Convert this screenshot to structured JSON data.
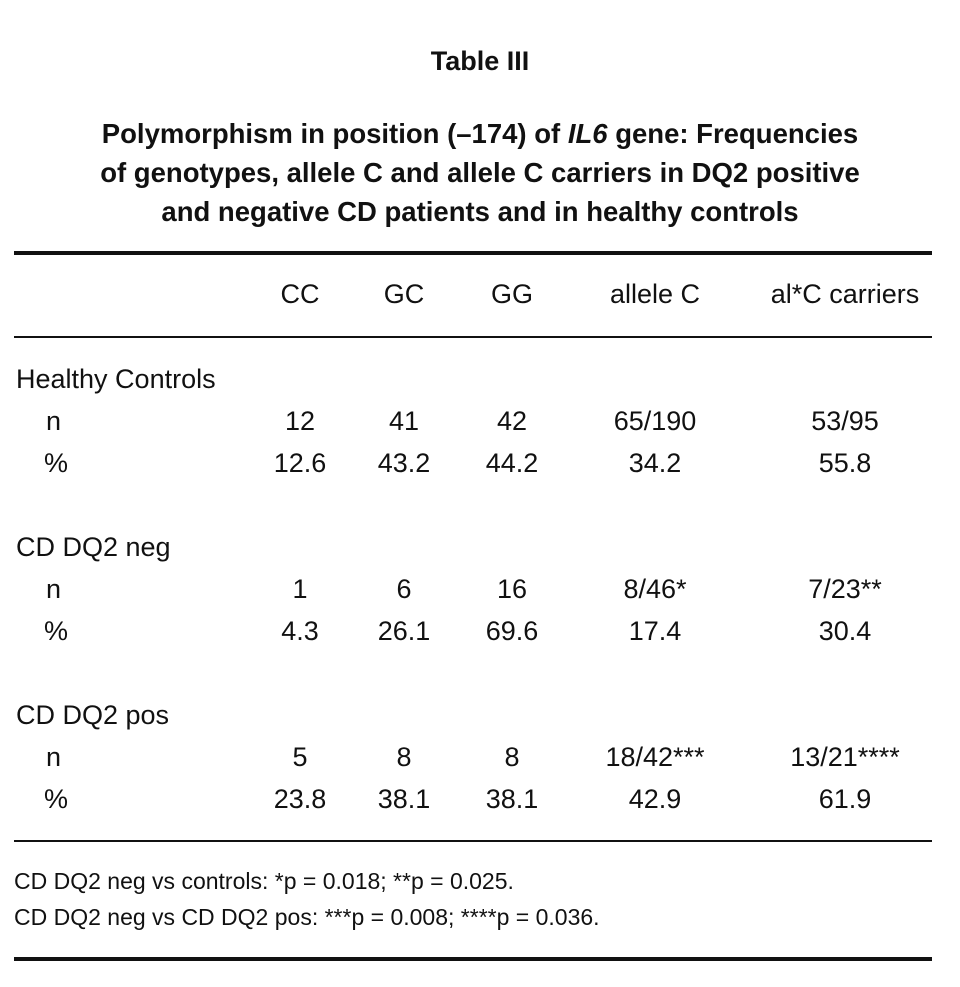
{
  "title": "Table III",
  "subtitle": {
    "pre": "Polymorphism in position (–174) of ",
    "gene": "IL6",
    "line1_post": " gene: Frequencies",
    "line2": "of genotypes, allele C and allele C carriers in DQ2 positive",
    "line3": "and negative CD patients and in healthy controls"
  },
  "columns": [
    "CC",
    "GC",
    "GG",
    "allele C",
    "al*C carriers"
  ],
  "groups": [
    {
      "label": "Healthy Controls",
      "rows": [
        {
          "label": "n",
          "values": [
            "12",
            "41",
            "42",
            "65/190",
            "53/95"
          ]
        },
        {
          "label": "%",
          "values": [
            "12.6",
            "43.2",
            "44.2",
            "34.2",
            "55.8"
          ]
        }
      ]
    },
    {
      "label": "CD DQ2 neg",
      "rows": [
        {
          "label": "n",
          "values": [
            "1",
            "6",
            "16",
            "8/46*",
            "7/23**"
          ]
        },
        {
          "label": "%",
          "values": [
            "4.3",
            "26.1",
            "69.6",
            "17.4",
            "30.4"
          ]
        }
      ]
    },
    {
      "label": "CD DQ2 pos",
      "rows": [
        {
          "label": "n",
          "values": [
            "5",
            "8",
            "8",
            "18/42***",
            "13/21****"
          ]
        },
        {
          "label": "%",
          "values": [
            "23.8",
            "38.1",
            "38.1",
            "42.9",
            "61.9"
          ]
        }
      ]
    }
  ],
  "footnotes": [
    "CD DQ2 neg vs controls: *p = 0.018; **p = 0.025.",
    "CD DQ2 neg vs CD DQ2 pos: ***p = 0.008; ****p = 0.036."
  ]
}
